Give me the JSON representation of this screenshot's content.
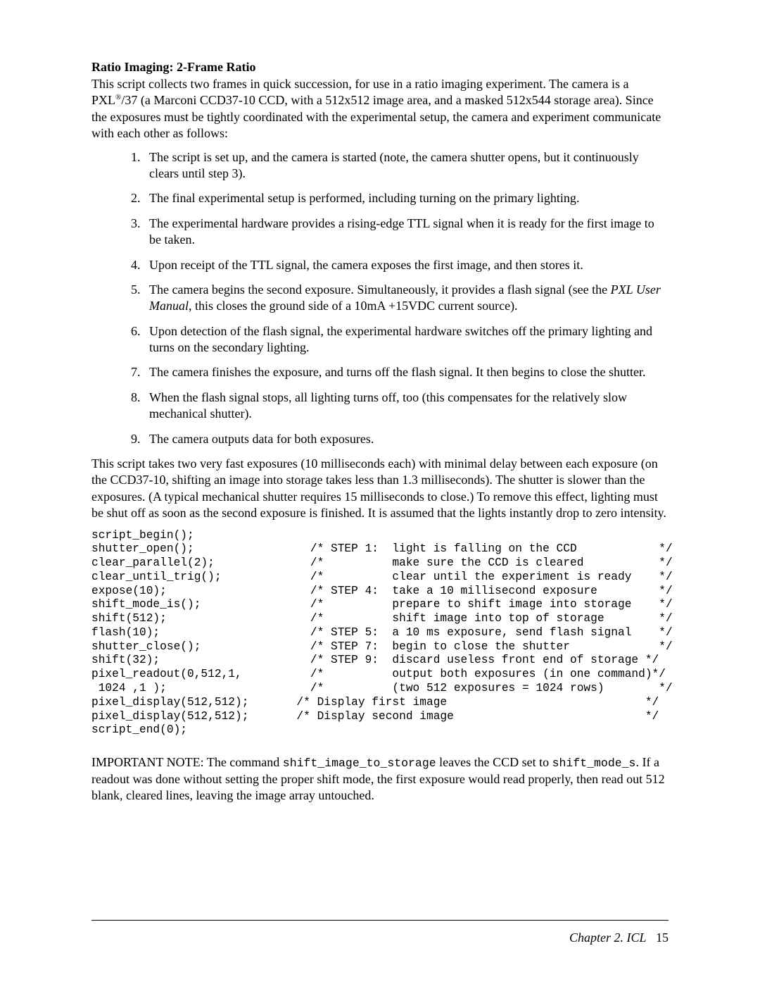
{
  "title": "Ratio Imaging: 2-Frame Ratio",
  "intro": "This script collects two frames in quick succession, for use in a ratio imaging experiment. The camera is a PXL®/37 (a Marconi CCD37-10 CCD, with a 512x512 image area, and a masked 512x544 storage area). Since the exposures must be tightly coordinated with the experimental setup, the camera and experiment communicate with each other as follows:",
  "steps": [
    "The script is set up, and the camera is started (note, the camera shutter opens, but it continuously clears until step 3).",
    "The final experimental setup is performed, including turning on the primary lighting.",
    "The experimental hardware provides a rising-edge TTL signal when it is ready for the first image to be taken.",
    "Upon receipt of the TTL signal, the camera exposes the first image, and then stores it.",
    "The camera begins the second exposure. Simultaneously, it provides a flash signal (see the PXL User Manual, this closes the ground side of a 10mA +15VDC current source).",
    "Upon detection of the flash signal, the experimental hardware switches off the primary lighting and turns on the secondary lighting.",
    "The camera finishes the exposure, and turns off the flash signal. It then begins to close the shutter.",
    "When the flash signal stops, all lighting turns off, too (this compensates for the relatively slow mechanical shutter).",
    "The camera outputs data for both exposures."
  ],
  "mid_paragraph": "This script takes two very fast exposures (10 milliseconds each) with minimal delay between each exposure (on the CCD37-10, shifting an image into storage takes less than 1.3 milliseconds). The shutter is slower than the exposures. (A typical mechanical shutter requires 15 milliseconds to close.) To remove this effect, lighting must be shut off as soon as the second exposure is finished. It is assumed that the lights instantly drop to zero intensity.",
  "code": "script_begin();\nshutter_open();                 /* STEP 1:  light is falling on the CCD            */\nclear_parallel(2);              /*          make sure the CCD is cleared           */\nclear_until_trig();             /*          clear until the experiment is ready    */\nexpose(10);                     /* STEP 4:  take a 10 millisecond exposure         */\nshift_mode_is();                /*          prepare to shift image into storage    */\nshift(512);                     /*          shift image into top of storage        */\nflash(10);                      /* STEP 5:  a 10 ms exposure, send flash signal    */\nshutter_close();                /* STEP 7:  begin to close the shutter             */\nshift(32);                      /* STEP 9:  discard useless front end of storage */\npixel_readout(0,512,1,          /*          output both exposures (in one command)*/\n 1024 ,1 );                     /*          (two 512 exposures = 1024 rows)        */\npixel_display(512,512);       /* Display first image                             */\npixel_display(512,512);       /* Display second image                            */\nscript_end(0);",
  "note_prefix": "IMPORTANT NOTE: The command ",
  "note_code1": "shift_image_to_storage",
  "note_mid": " leaves the CCD set to ",
  "note_code2": "shift_mode_s",
  "note_suffix": ". If a readout was done without setting the proper shift mode, the first exposure would read properly, then read out 512 blank, cleared lines, leaving the image array untouched.",
  "footer_chapter": "Chapter 2. ICL",
  "footer_page": "15"
}
